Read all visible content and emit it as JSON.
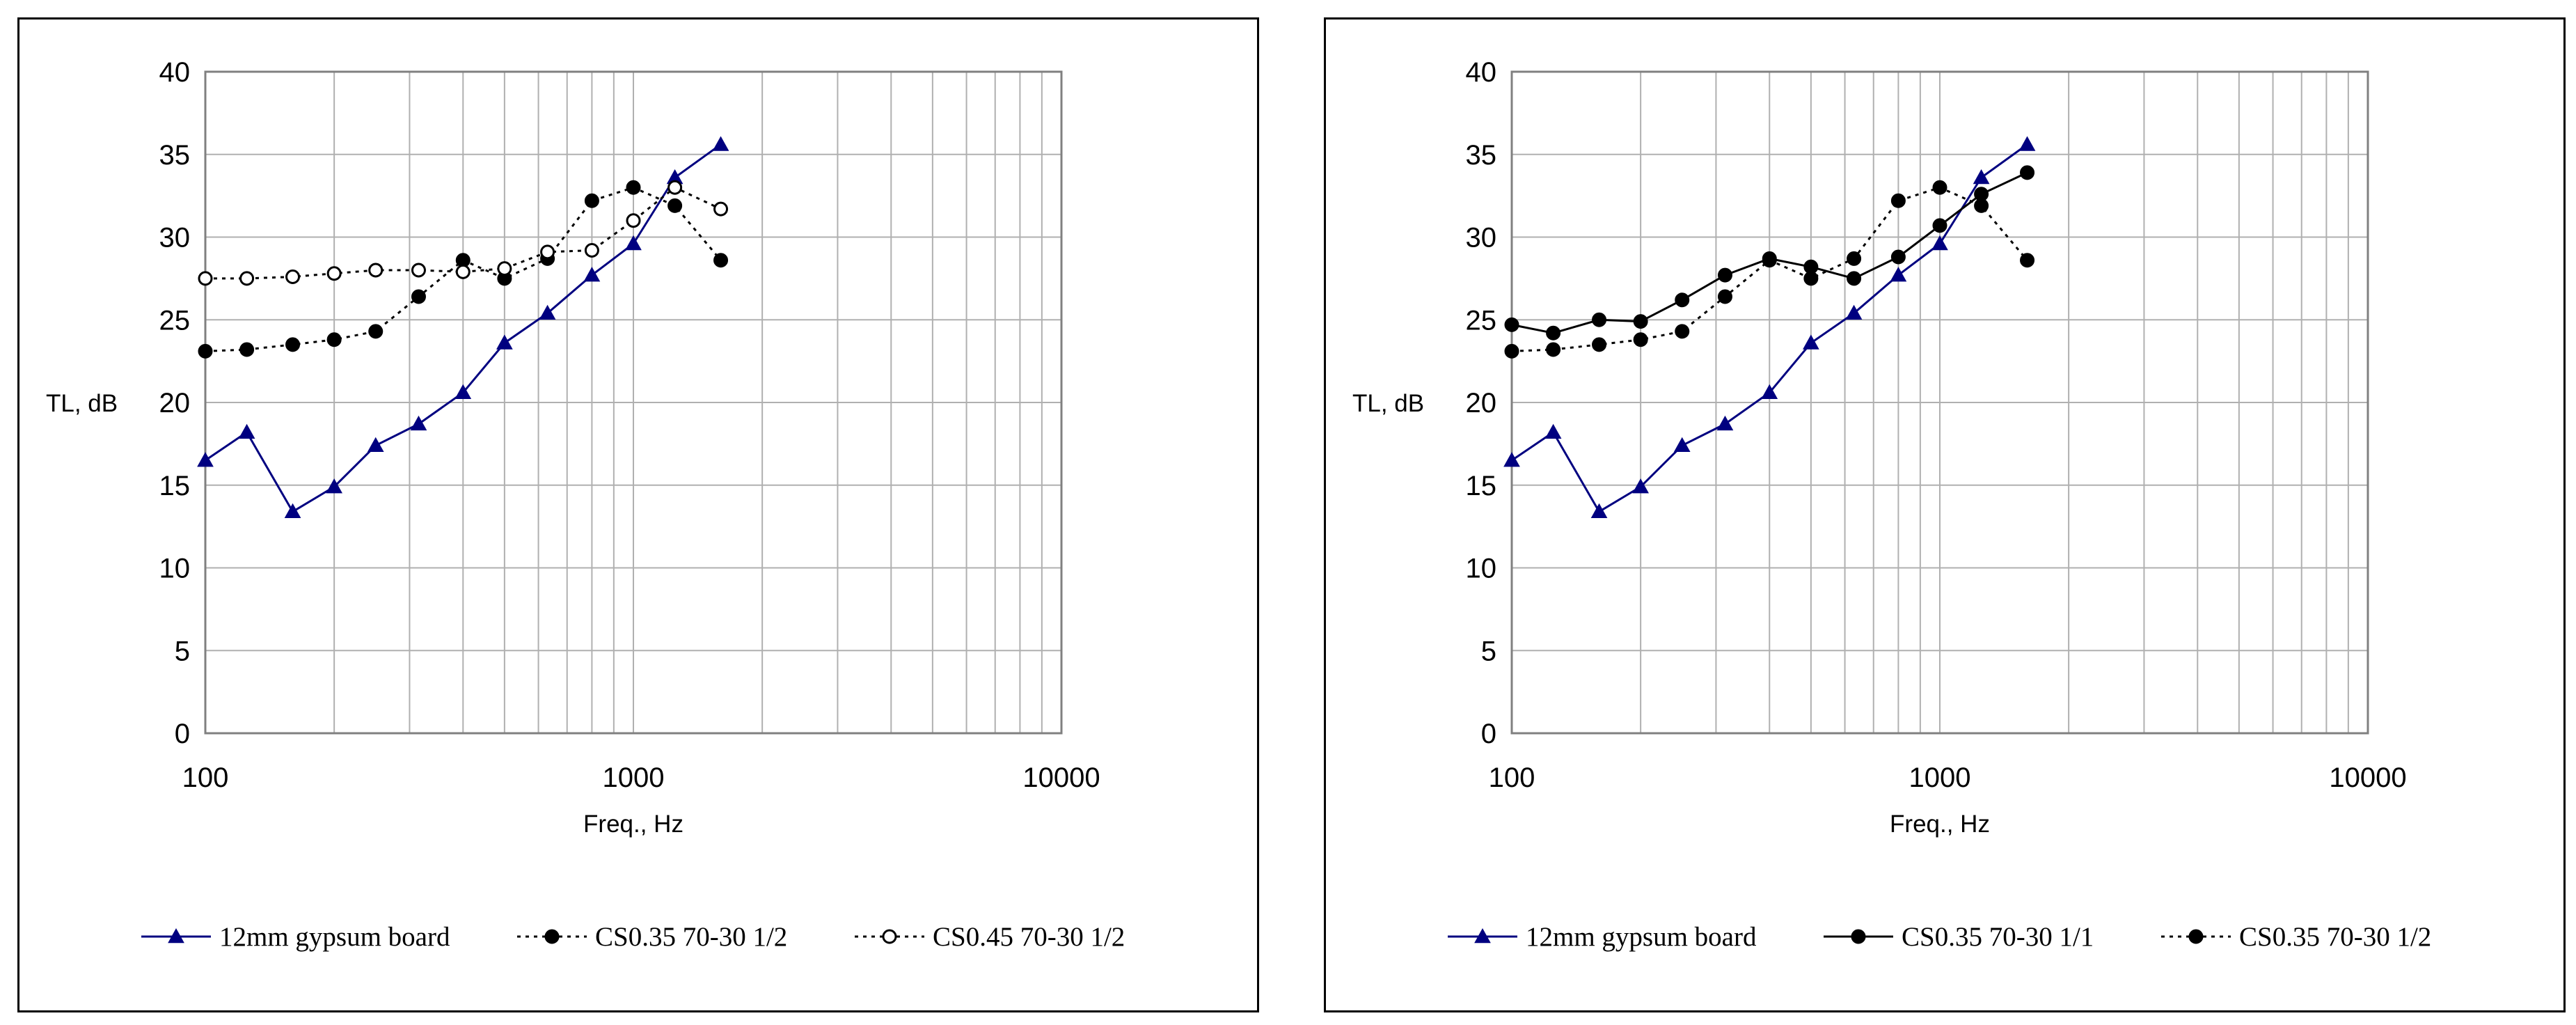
{
  "chart_data": [
    {
      "type": "line",
      "title": "",
      "xlabel": "Freq., Hz",
      "ylabel": "TL, dB",
      "xscale": "log",
      "xlim": [
        100,
        10000
      ],
      "ylim": [
        0,
        40
      ],
      "x_ticks": [
        "100",
        "1000",
        "10000"
      ],
      "y_ticks": [
        "0",
        "5",
        "10",
        "15",
        "20",
        "25",
        "30",
        "35",
        "40"
      ],
      "grid": true,
      "legend_position": "bottom",
      "x": [
        100,
        125,
        160,
        200,
        250,
        315,
        400,
        500,
        630,
        800,
        1000,
        1250,
        1600
      ],
      "series": [
        {
          "name": "12mm gypsum board",
          "values": [
            16.5,
            18.2,
            13.4,
            14.9,
            17.4,
            18.7,
            20.6,
            23.6,
            25.4,
            27.7,
            29.6,
            33.6,
            35.6
          ],
          "marker": "triangle",
          "line": "solid",
          "color": "#000080"
        },
        {
          "name": "CS0.35 70-30 1/2",
          "values": [
            23.1,
            23.2,
            23.5,
            23.8,
            24.3,
            26.4,
            28.6,
            27.5,
            28.7,
            32.2,
            33.0,
            31.9,
            28.6
          ],
          "marker": "filled-circle",
          "line": "dotted",
          "color": "#000000"
        },
        {
          "name": "CS0.45 70-30 1/2",
          "values": [
            27.5,
            27.5,
            27.6,
            27.8,
            28.0,
            28.0,
            27.9,
            28.1,
            29.1,
            29.2,
            31.0,
            33.0,
            31.7
          ],
          "marker": "open-circle",
          "line": "dotted",
          "color": "#000000"
        }
      ]
    },
    {
      "type": "line",
      "title": "",
      "xlabel": "Freq., Hz",
      "ylabel": "TL, dB",
      "xscale": "log",
      "xlim": [
        100,
        10000
      ],
      "ylim": [
        0,
        40
      ],
      "x_ticks": [
        "100",
        "1000",
        "10000"
      ],
      "y_ticks": [
        "0",
        "5",
        "10",
        "15",
        "20",
        "25",
        "30",
        "35",
        "40"
      ],
      "grid": true,
      "legend_position": "bottom",
      "x": [
        100,
        125,
        160,
        200,
        250,
        315,
        400,
        500,
        630,
        800,
        1000,
        1250,
        1600
      ],
      "series": [
        {
          "name": "12mm gypsum board",
          "values": [
            16.5,
            18.2,
            13.4,
            14.9,
            17.4,
            18.7,
            20.6,
            23.6,
            25.4,
            27.7,
            29.6,
            33.6,
            35.6
          ],
          "marker": "triangle",
          "line": "solid",
          "color": "#000080"
        },
        {
          "name": "CS0.35 70-30 1/1",
          "values": [
            24.7,
            24.2,
            25.0,
            24.9,
            26.2,
            27.7,
            28.7,
            28.2,
            27.5,
            28.8,
            30.7,
            32.6,
            33.9
          ],
          "marker": "filled-circle",
          "line": "solid",
          "color": "#000000"
        },
        {
          "name": "CS0.35 70-30 1/2",
          "values": [
            23.1,
            23.2,
            23.5,
            23.8,
            24.3,
            26.4,
            28.6,
            27.5,
            28.7,
            32.2,
            33.0,
            31.9,
            28.6
          ],
          "marker": "filled-circle",
          "line": "dotted",
          "color": "#000000"
        }
      ]
    }
  ]
}
